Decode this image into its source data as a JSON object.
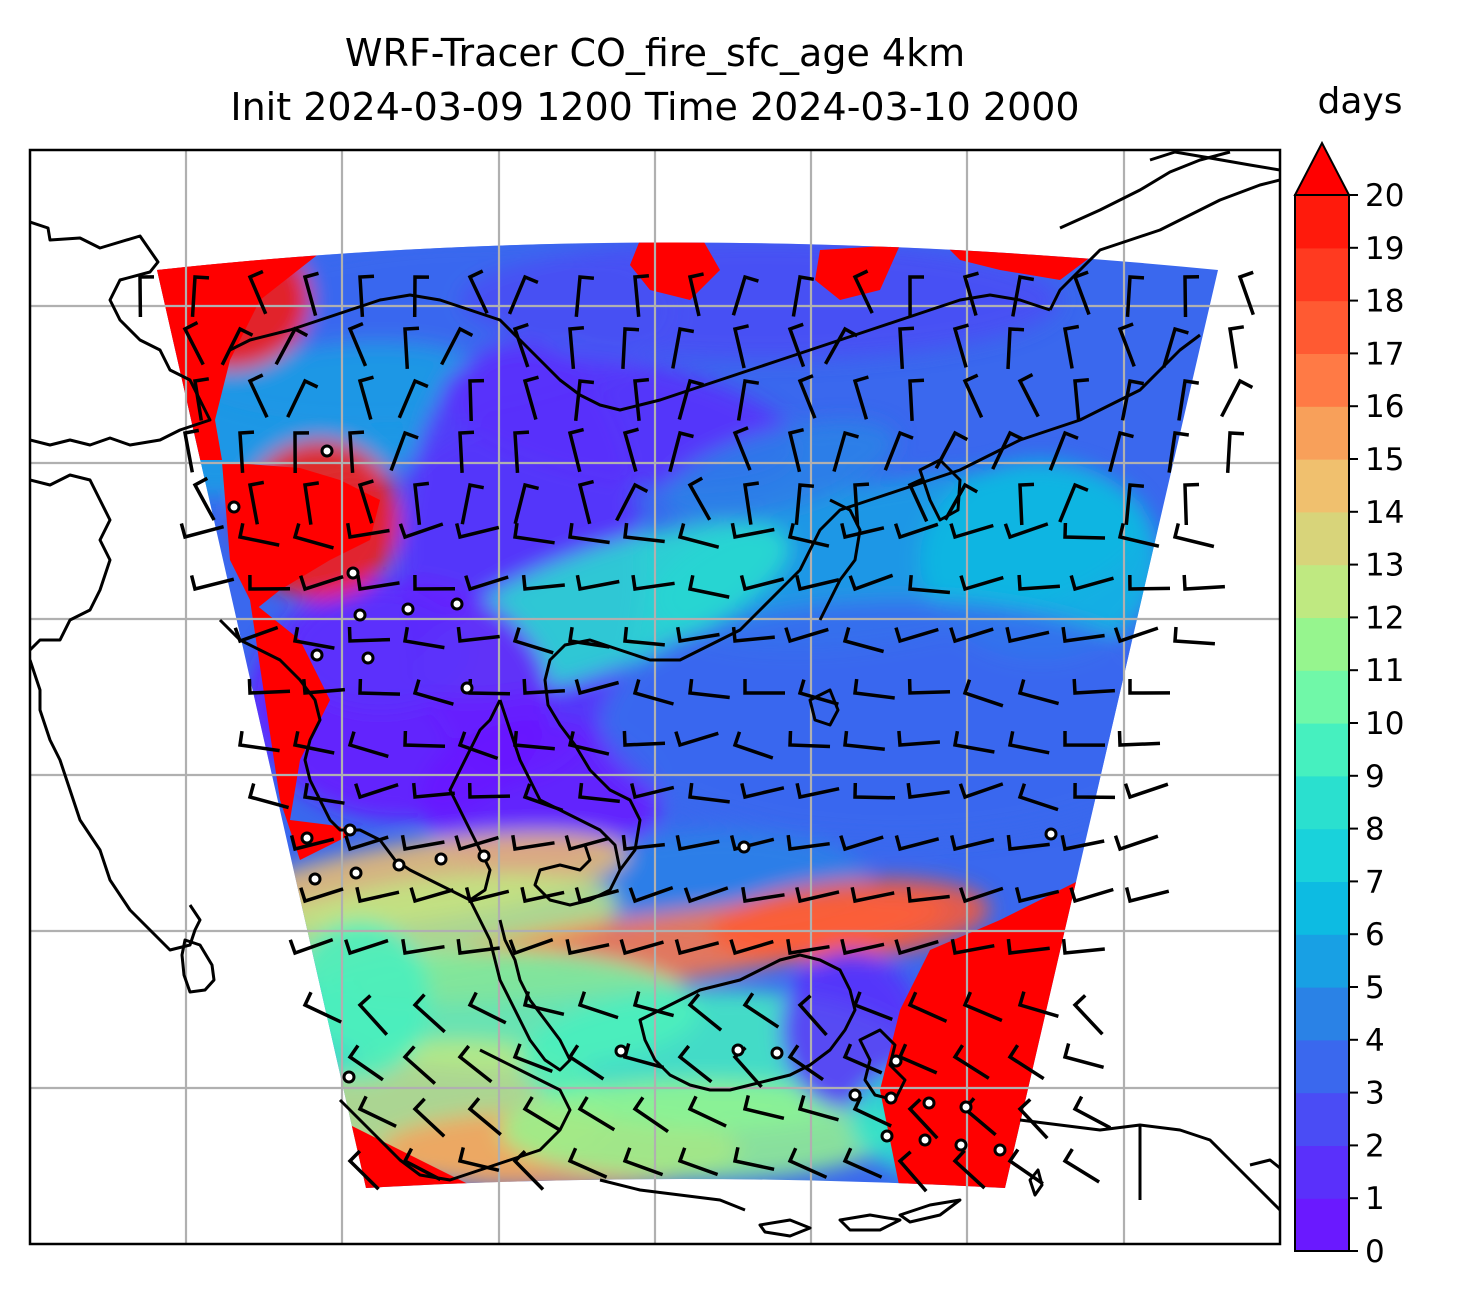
{
  "title": {
    "line1": "WRF-Tracer CO_fire_sfc_age 4km",
    "line2": "Init 2024-03-09 1200 Time 2024-03-10 2000"
  },
  "colorbar": {
    "unit": "days",
    "min": 0,
    "max": 20,
    "ticks": [
      "0",
      "1",
      "2",
      "3",
      "4",
      "5",
      "6",
      "7",
      "8",
      "9",
      "10",
      "11",
      "12",
      "13",
      "14",
      "15",
      "16",
      "17",
      "18",
      "19",
      "20"
    ],
    "extend": "max",
    "colors": [
      "#6a19ff",
      "#5a30fb",
      "#4a4cf5",
      "#3a68ee",
      "#2a82e6",
      "#18a0e4",
      "#0dbbe2",
      "#19d2db",
      "#2ae0cf",
      "#46f0bf",
      "#70f8a8",
      "#96f58e",
      "#bfe981",
      "#d8d47a",
      "#f0c06e",
      "#f8a05a",
      "#ff7a45",
      "#ff5a32",
      "#ff3a20",
      "#ff1a0c"
    ],
    "extend_color": "#ff0000"
  },
  "map": {
    "projection": "lambert-conformal",
    "gridlines": true,
    "gridline_color": "#b0b0b0",
    "coastline_color": "#000000",
    "barb_color": "#000000",
    "domain_fill": "#3a68ee"
  }
}
